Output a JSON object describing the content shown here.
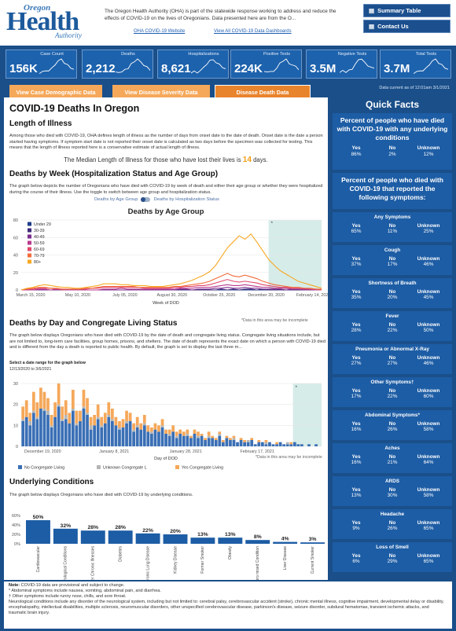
{
  "header": {
    "logo_top": "Oregon",
    "logo_main": "Health",
    "logo_sub": "Authority",
    "intro": "The Oregon Health Authority (OHA) is part of the statewide response working to address and reduce the effects of COVID-19 on the lives of Oregonians. Data presented here are from the O...",
    "link_website": "OHA COVID-19 Website",
    "link_dashboards": "View All COVID-19 Data Dashboards",
    "btn_summary": "Summary Table",
    "btn_contact": "Contact Us"
  },
  "kpis": [
    {
      "label": "Case Count",
      "value": "156K"
    },
    {
      "label": "Deaths",
      "value": "2,212"
    },
    {
      "label": "Hospitalizations",
      "value": "8,621"
    },
    {
      "label": "Positive Tests",
      "value": "224K"
    },
    {
      "label": "Negative Tests",
      "value": "3.5M"
    },
    {
      "label": "Total Tests",
      "value": "3.7M"
    }
  ],
  "as_of": "Data current as of 12:01am 3/1/2021",
  "tabs": {
    "demographic": "View Case Demographic Data",
    "severity": "View Disease Severity Data",
    "death": "Disease Death Data"
  },
  "colors": {
    "accent": "#f5a85a",
    "active_tab": "#e8842c",
    "navy": "#1a4f8a"
  },
  "main": {
    "title": "COVID-19 Deaths In Oregon",
    "length_heading": "Length of Illness",
    "length_text": "Among those who died with COVID-19, OHA defines length of illness as the number of days from onset date to the date of death. Onset date is the date a person started having symptoms. If symptom start date is not reported their onset date is calculated as two days before the specimen was collected for testing. This means that the length of illness reported here is a conservative estimate of actual length of illness.",
    "median_pre": "The Median Length of Illness for those who have lost their lives is ",
    "median_value": "14",
    "median_post": " days.",
    "week_heading": "Deaths by Week (Hospitalization Status and Age Group)",
    "week_text": "The graph below depicts the number of Oregonians who have died with COVID-19 by week of death and either their age group or whether they were hospitalized during the course of their illness. Use the toggle to switch between age group and hospitalization status.",
    "toggle_left": "Deaths by Age Group",
    "toggle_right": "Deaths by Hospitalization Status",
    "incomplete_note": "*Data in this area may be incomplete",
    "day_heading": "Deaths by Day and Congregate Living Status",
    "day_text": "The graph below displays Oregonians who have died with COVID-19 by the date of death and congregate living status. Congregate living situations include, but are not limited to, long-term care facilities, group homes, prisons, and shelters. The date of death represents the exact date on which a person with COVID-19 died and is different from the day a death is reported to public health. By default, the graph is set to display the last three m...",
    "range_label": "Select a date range for the graph below",
    "range_value": "12/13/2020 to 3/6/2021",
    "uc_heading": "Underlying Conditions",
    "uc_text": "The graph below displays Oregonians who have died with COVID-19 by underlying conditions."
  },
  "chart_data": [
    {
      "type": "line",
      "title": "Deaths by Age Group",
      "xlabel": "Week of DOD",
      "ylim": [
        0,
        80
      ],
      "yticks": [
        0,
        20,
        40,
        60,
        80
      ],
      "xtick_labels": [
        "March 15, 2020",
        "May 10, 2020",
        "July 05, 2020",
        "August 30, 2020",
        "October 25, 2020",
        "December 20, 2020",
        "February 14, 2021"
      ],
      "series": [
        {
          "name": "Under 29",
          "color": "#1f3c88",
          "values": [
            0,
            0,
            0,
            0,
            0,
            0,
            0,
            0,
            0,
            0,
            0,
            0,
            0,
            0,
            0,
            0,
            0,
            0,
            0,
            0,
            0,
            0,
            0,
            0,
            0,
            0,
            0,
            0,
            0,
            0,
            0,
            0,
            0,
            0,
            0,
            0,
            0,
            0,
            0,
            0,
            0,
            0,
            0,
            0,
            0,
            0,
            0,
            0,
            0,
            0,
            0,
            0
          ]
        },
        {
          "name": "30-39",
          "color": "#3d2a7a",
          "values": [
            0,
            0,
            0,
            0,
            0,
            0,
            0,
            0,
            0,
            0,
            0,
            0,
            0,
            0,
            0,
            0,
            0,
            0,
            0,
            0,
            0,
            0,
            0,
            0,
            0,
            0,
            0,
            0,
            0,
            0,
            0,
            0,
            0,
            0,
            1,
            0,
            1,
            0,
            1,
            1,
            0,
            1,
            0,
            0,
            0,
            0,
            0,
            0,
            0,
            0,
            0,
            0
          ]
        },
        {
          "name": "40-49",
          "color": "#7b2d8e",
          "values": [
            0,
            0,
            0,
            0,
            0,
            0,
            0,
            0,
            0,
            0,
            0,
            0,
            0,
            0,
            0,
            0,
            0,
            0,
            0,
            0,
            0,
            0,
            0,
            0,
            0,
            0,
            0,
            1,
            1,
            0,
            1,
            1,
            1,
            2,
            2,
            3,
            2,
            2,
            3,
            2,
            2,
            1,
            1,
            1,
            1,
            0,
            1,
            1,
            0,
            0,
            0,
            0
          ]
        },
        {
          "name": "50-59",
          "color": "#b83a8e",
          "values": [
            0,
            0,
            0,
            1,
            1,
            0,
            1,
            0,
            0,
            0,
            0,
            0,
            0,
            0,
            1,
            1,
            1,
            2,
            1,
            1,
            1,
            1,
            1,
            1,
            1,
            1,
            1,
            2,
            2,
            2,
            3,
            3,
            3,
            4,
            5,
            6,
            5,
            5,
            6,
            5,
            4,
            3,
            3,
            2,
            2,
            2,
            1,
            1,
            1,
            1,
            0,
            0
          ]
        },
        {
          "name": "60-69",
          "color": "#e0486e",
          "values": [
            0,
            1,
            1,
            2,
            2,
            2,
            1,
            1,
            1,
            1,
            1,
            1,
            2,
            2,
            3,
            3,
            3,
            3,
            3,
            3,
            3,
            2,
            2,
            2,
            2,
            2,
            3,
            3,
            4,
            4,
            5,
            5,
            6,
            8,
            10,
            12,
            10,
            9,
            10,
            9,
            8,
            6,
            5,
            4,
            3,
            3,
            2,
            2,
            2,
            1,
            1,
            0
          ]
        },
        {
          "name": "70-79",
          "color": "#f26b3a",
          "values": [
            0,
            1,
            2,
            3,
            3,
            2,
            2,
            1,
            1,
            1,
            1,
            2,
            2,
            3,
            4,
            4,
            4,
            4,
            4,
            4,
            3,
            3,
            3,
            3,
            3,
            3,
            4,
            4,
            5,
            6,
            7,
            8,
            10,
            13,
            16,
            19,
            16,
            15,
            17,
            15,
            13,
            10,
            8,
            6,
            5,
            4,
            3,
            3,
            2,
            2,
            1,
            1
          ]
        },
        {
          "name": "80+",
          "color": "#f7a823",
          "values": [
            0,
            2,
            3,
            5,
            6,
            5,
            4,
            3,
            3,
            2,
            2,
            3,
            4,
            5,
            7,
            7,
            7,
            6,
            6,
            5,
            5,
            5,
            4,
            4,
            4,
            5,
            6,
            7,
            9,
            11,
            14,
            17,
            21,
            28,
            38,
            48,
            55,
            62,
            58,
            64,
            55,
            45,
            35,
            28,
            22,
            18,
            14,
            10,
            8,
            6,
            4,
            2
          ]
        }
      ],
      "incomplete_from_index": 42
    },
    {
      "type": "bar",
      "title": "",
      "xlabel": "Day of DOD",
      "ylim": [
        0,
        30
      ],
      "yticks": [
        0,
        10,
        20,
        30
      ],
      "xtick_labels": [
        "December 19, 2020",
        "January 8, 2021",
        "January 28, 2021",
        "February 17, 2021"
      ],
      "legend": [
        "No Congregate Living",
        "Unknown Congregate L",
        "Yes Congregate Living"
      ],
      "series": [
        {
          "name": "No Congregate Living",
          "color": "#3a6fb5",
          "values": [
            12,
            14,
            10,
            16,
            13,
            18,
            17,
            15,
            9,
            14,
            19,
            12,
            13,
            11,
            17,
            10,
            12,
            18,
            15,
            8,
            10,
            13,
            9,
            11,
            14,
            12,
            10,
            8,
            9,
            11,
            12,
            7,
            9,
            8,
            10,
            7,
            6,
            8,
            7,
            9,
            6,
            5,
            7,
            4,
            6,
            5,
            5,
            4,
            6,
            4,
            5,
            3,
            4,
            4,
            3,
            5,
            2,
            4,
            3,
            3,
            2,
            3,
            2,
            2,
            3,
            1,
            2,
            2,
            1,
            2,
            1,
            1,
            2,
            1,
            1,
            1,
            2,
            1,
            1,
            0,
            1,
            0,
            1,
            0
          ]
        },
        {
          "name": "Unknown Congregate L",
          "color": "#b5b5b5",
          "values": [
            1,
            0,
            2,
            1,
            1,
            0,
            1,
            2,
            1,
            0,
            1,
            1,
            2,
            0,
            1,
            1,
            0,
            1,
            1,
            2,
            0,
            1,
            1,
            0,
            1,
            1,
            0,
            1,
            0,
            1,
            0,
            1,
            1,
            0,
            1,
            0,
            1,
            0,
            0,
            1,
            0,
            1,
            0,
            1,
            0,
            0,
            1,
            0,
            0,
            1,
            0,
            0,
            1,
            0,
            0,
            1,
            0,
            0,
            0,
            1,
            0,
            0,
            0,
            1,
            0,
            0,
            0,
            0,
            1,
            0,
            0,
            0,
            0,
            0,
            1,
            0,
            0,
            0,
            0,
            0,
            0,
            0,
            0,
            0
          ]
        },
        {
          "name": "Yes Congregate Living",
          "color": "#f5a85a",
          "values": [
            6,
            8,
            4,
            9,
            7,
            10,
            8,
            6,
            5,
            7,
            10,
            6,
            7,
            5,
            9,
            6,
            5,
            8,
            7,
            4,
            5,
            6,
            4,
            5,
            6,
            5,
            4,
            3,
            4,
            5,
            4,
            3,
            4,
            3,
            4,
            3,
            2,
            3,
            3,
            3,
            2,
            2,
            3,
            2,
            2,
            2,
            2,
            1,
            2,
            2,
            1,
            1,
            2,
            1,
            1,
            1,
            1,
            1,
            1,
            1,
            0,
            1,
            1,
            0,
            1,
            0,
            1,
            0,
            1,
            0,
            0,
            1,
            0,
            0,
            0,
            1,
            0,
            0,
            0,
            0,
            0,
            0,
            0,
            0
          ]
        }
      ],
      "incomplete_from_index": 76
    },
    {
      "type": "bar",
      "title": "",
      "ylim": [
        0,
        60
      ],
      "yticks": [
        "0%",
        "20%",
        "40%",
        "60%"
      ],
      "categories": [
        "Cardiovascular",
        "Neurological Conditions",
        "Other Chronic Illnesses",
        "Diabetes",
        "Chronic Lung Disease",
        "Kidney Disease",
        "Former Smoker",
        "Obesity",
        "Immunocompro mised Condition",
        "Liver Disease",
        "Current Smoker"
      ],
      "values": [
        50,
        32,
        28,
        28,
        22,
        20,
        13,
        13,
        8,
        4,
        3
      ],
      "value_labels": [
        "50%",
        "32%",
        "28%",
        "28%",
        "22%",
        "20%",
        "13%",
        "13%",
        "8%",
        "4%",
        "3%"
      ],
      "color": "#1d5da5"
    }
  ],
  "quick_facts": {
    "title": "Quick Facts",
    "underlying": {
      "heading": "Percent of people who have died with COVID-19 with any underlying conditions",
      "yes": "86%",
      "no": "2%",
      "unknown": "12%"
    },
    "symptoms_heading": "Percent of people who died with COVID-19 that reported the following symptoms:",
    "col_yes": "Yes",
    "col_no": "No",
    "col_unknown": "Unknown",
    "symptoms": [
      {
        "name": "Any Symptoms",
        "yes": "65%",
        "no": "11%",
        "unknown": "25%"
      },
      {
        "name": "Cough",
        "yes": "37%",
        "no": "17%",
        "unknown": "46%"
      },
      {
        "name": "Shortness of Breath",
        "yes": "35%",
        "no": "20%",
        "unknown": "45%"
      },
      {
        "name": "Fever",
        "yes": "28%",
        "no": "22%",
        "unknown": "50%"
      },
      {
        "name": "Pneumonia or Abnormal X-Ray",
        "yes": "27%",
        "no": "27%",
        "unknown": "46%"
      },
      {
        "name": "Other Symptoms†",
        "yes": "17%",
        "no": "22%",
        "unknown": "60%"
      },
      {
        "name": "Abdominal Symptoms*",
        "yes": "16%",
        "no": "26%",
        "unknown": "58%"
      },
      {
        "name": "Aches",
        "yes": "16%",
        "no": "21%",
        "unknown": "64%"
      },
      {
        "name": "ARDS",
        "yes": "13%",
        "no": "30%",
        "unknown": "58%"
      },
      {
        "name": "Headache",
        "yes": "9%",
        "no": "26%",
        "unknown": "65%"
      },
      {
        "name": "Loss of Smell",
        "yes": "6%",
        "no": "29%",
        "unknown": "65%"
      }
    ]
  },
  "footer": {
    "note_label": "Note:",
    "note1": " COVID-19 data are provisional and subject to change.",
    "note2": "* Abdominal symptoms include nausea, vomiting, abdominal pain, and diarrhea.",
    "note3": "† Other symptoms include runny nose, chills, and sore throat.",
    "note4": "Neurological conditions include any disorder of the neurological system, including but not limited to: cerebral palsy, cerebrovascular accident (stroke), chronic mental illness, cognitive impairment, developmental delay or disability, encephalopathy, intellectual disabilities, multiple sclerosis, neuromuscular disorders, other unspecified cerebrovascular disease, parkinson's disease, seizure disorder, subdural hematomas, transient ischemic attacks, and traumatic brain injury."
  }
}
